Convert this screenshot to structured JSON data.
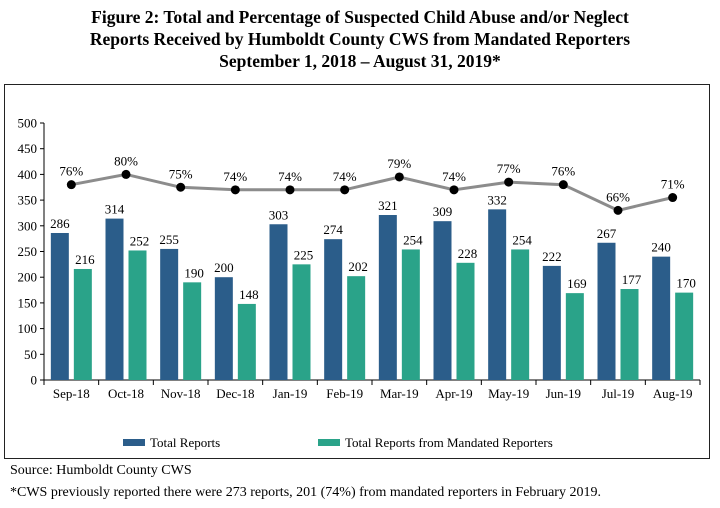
{
  "title": {
    "line1": "Figure 2: Total and Percentage of Suspected Child Abuse and/or Neglect",
    "line2": "Reports Received by Humboldt County CWS from Mandated Reporters",
    "line3": "September 1, 2018 – August 31, 2019*"
  },
  "colors": {
    "total": "#2b5d8a",
    "mandated": "#2aa389",
    "line": "#8c8c8c",
    "marker": "#000000"
  },
  "chart_data": {
    "type": "bar",
    "categories": [
      "Sep-18",
      "Oct-18",
      "Nov-18",
      "Dec-18",
      "Jan-19",
      "Feb-19",
      "Mar-19",
      "Apr-19",
      "May-19",
      "Jun-19",
      "Jul-19",
      "Aug-19"
    ],
    "series": [
      {
        "name": "Total Reports",
        "values": [
          286,
          314,
          255,
          200,
          303,
          274,
          321,
          309,
          332,
          222,
          267,
          240
        ]
      },
      {
        "name": "Total Reports from Mandated Reporters",
        "values": [
          216,
          252,
          190,
          148,
          225,
          202,
          254,
          228,
          254,
          169,
          177,
          170
        ]
      }
    ],
    "percent_line": {
      "type": "line",
      "labels": [
        "76%",
        "80%",
        "75%",
        "74%",
        "74%",
        "74%",
        "79%",
        "74%",
        "77%",
        "76%",
        "66%",
        "71%"
      ],
      "values": [
        76,
        80,
        75,
        74,
        74,
        74,
        79,
        74,
        77,
        76,
        66,
        71
      ]
    },
    "ylim": [
      0,
      500
    ],
    "yticks": [
      "0",
      "50",
      "100",
      "150",
      "200",
      "250",
      "300",
      "350",
      "400",
      "450",
      "500"
    ],
    "grid": false,
    "legend_position": "bottom"
  },
  "source": "Source: Humboldt County CWS",
  "footnote": "*CWS previously reported there were 273 reports, 201 (74%) from mandated reporters in February 2019."
}
